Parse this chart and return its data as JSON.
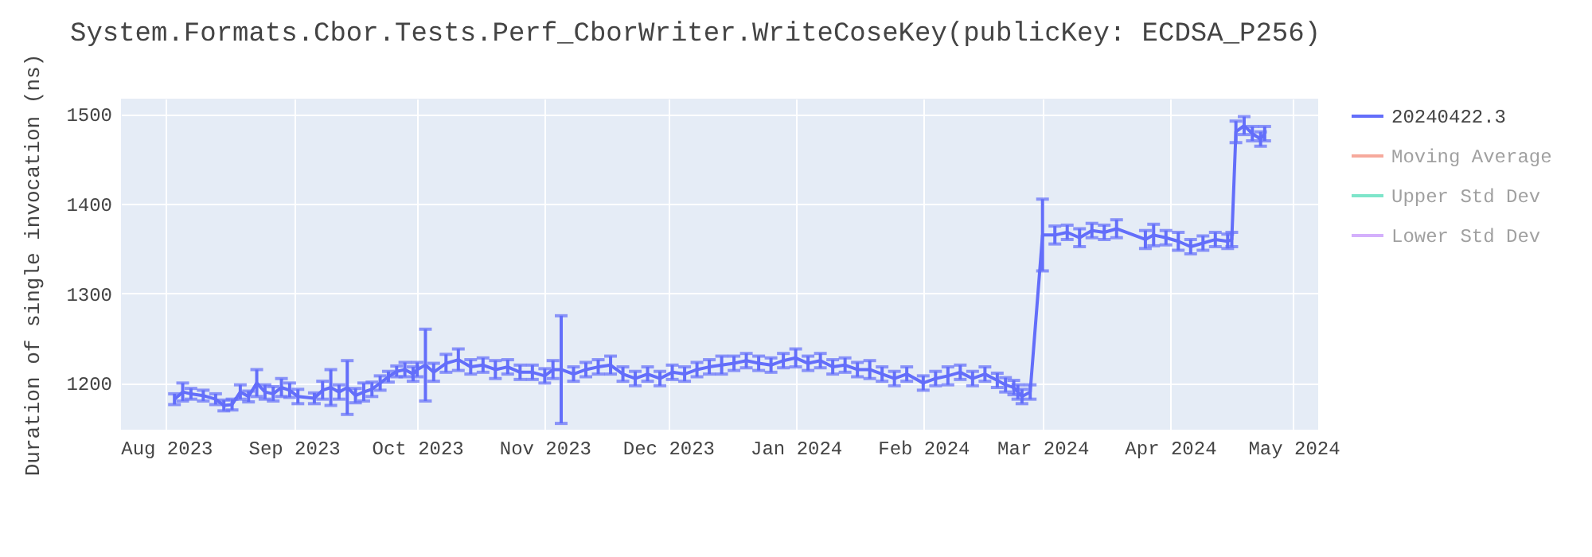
{
  "chart_data": {
    "type": "line",
    "title": "System.Formats.Cbor.Tests.Perf_CborWriter.WriteCoseKey(publicKey: ECDSA_P256)",
    "ylabel": "Duration of single invocation (ns)",
    "xlim": [
      "2023-07-21",
      "2024-05-07"
    ],
    "ylim": [
      1148,
      1517
    ],
    "xticks": [
      {
        "value": "2023-08-01",
        "label": "Aug 2023"
      },
      {
        "value": "2023-09-01",
        "label": "Sep 2023"
      },
      {
        "value": "2023-10-01",
        "label": "Oct 2023"
      },
      {
        "value": "2023-11-01",
        "label": "Nov 2023"
      },
      {
        "value": "2023-12-01",
        "label": "Dec 2023"
      },
      {
        "value": "2024-01-01",
        "label": "Jan 2024"
      },
      {
        "value": "2024-02-01",
        "label": "Feb 2024"
      },
      {
        "value": "2024-03-01",
        "label": "Mar 2024"
      },
      {
        "value": "2024-04-01",
        "label": "Apr 2024"
      },
      {
        "value": "2024-05-01",
        "label": "May 2024"
      }
    ],
    "yticks": [
      1200,
      1300,
      1400,
      1500
    ],
    "grid": true,
    "legend": "right",
    "line_style": "solid",
    "series": [
      {
        "name": "20240422.3",
        "color": "#636efa",
        "x": [
          "2023-08-03",
          "2023-08-05",
          "2023-08-07",
          "2023-08-10",
          "2023-08-13",
          "2023-08-15",
          "2023-08-17",
          "2023-08-19",
          "2023-08-21",
          "2023-08-23",
          "2023-08-25",
          "2023-08-27",
          "2023-08-29",
          "2023-08-31",
          "2023-09-02",
          "2023-09-06",
          "2023-09-08",
          "2023-09-10",
          "2023-09-12",
          "2023-09-14",
          "2023-09-16",
          "2023-09-18",
          "2023-09-20",
          "2023-09-22",
          "2023-09-24",
          "2023-09-26",
          "2023-09-28",
          "2023-09-30",
          "2023-10-01",
          "2023-10-03",
          "2023-10-05",
          "2023-10-08",
          "2023-10-11",
          "2023-10-14",
          "2023-10-17",
          "2023-10-20",
          "2023-10-23",
          "2023-10-26",
          "2023-10-29",
          "2023-11-01",
          "2023-11-03",
          "2023-11-05",
          "2023-11-08",
          "2023-11-11",
          "2023-11-14",
          "2023-11-17",
          "2023-11-20",
          "2023-11-23",
          "2023-11-26",
          "2023-11-29",
          "2023-12-02",
          "2023-12-05",
          "2023-12-08",
          "2023-12-11",
          "2023-12-14",
          "2023-12-17",
          "2023-12-20",
          "2023-12-23",
          "2023-12-26",
          "2023-12-29",
          "2024-01-01",
          "2024-01-04",
          "2024-01-07",
          "2024-01-10",
          "2024-01-13",
          "2024-01-16",
          "2024-01-19",
          "2024-01-22",
          "2024-01-25",
          "2024-01-28",
          "2024-02-01",
          "2024-02-04",
          "2024-02-07",
          "2024-02-10",
          "2024-02-13",
          "2024-02-16",
          "2024-02-19",
          "2024-02-21",
          "2024-02-23",
          "2024-02-24",
          "2024-02-25",
          "2024-02-27",
          "2024-03-01",
          "2024-03-04",
          "2024-03-07",
          "2024-03-10",
          "2024-03-13",
          "2024-03-16",
          "2024-03-19",
          "2024-03-26",
          "2024-03-28",
          "2024-03-31",
          "2024-04-03",
          "2024-04-06",
          "2024-04-09",
          "2024-04-12",
          "2024-04-15",
          "2024-04-16",
          "2024-04-17",
          "2024-04-19",
          "2024-04-21",
          "2024-04-23",
          "2024-04-24"
        ],
        "values": [
          1182,
          1190,
          1188,
          1186,
          1182,
          1175,
          1176,
          1190,
          1185,
          1200,
          1190,
          1188,
          1195,
          1192,
          1185,
          1183,
          1192,
          1195,
          1190,
          1195,
          1186,
          1190,
          1193,
          1200,
          1207,
          1213,
          1215,
          1210,
          1215,
          1220,
          1212,
          1222,
          1226,
          1218,
          1220,
          1215,
          1218,
          1212,
          1212,
          1208,
          1215,
          1215,
          1210,
          1215,
          1218,
          1220,
          1210,
          1205,
          1210,
          1205,
          1212,
          1210,
          1215,
          1218,
          1220,
          1222,
          1225,
          1222,
          1220,
          1225,
          1228,
          1222,
          1225,
          1218,
          1220,
          1215,
          1215,
          1210,
          1205,
          1210,
          1200,
          1205,
          1208,
          1212,
          1205,
          1210,
          1203,
          1198,
          1195,
          1190,
          1185,
          1190,
          1365,
          1365,
          1368,
          1362,
          1370,
          1368,
          1372,
          1360,
          1365,
          1362,
          1358,
          1352,
          1356,
          1360,
          1358,
          1360,
          1480,
          1487,
          1478,
          1472,
          1478
        ],
        "errors": [
          6,
          10,
          6,
          6,
          6,
          6,
          6,
          8,
          6,
          15,
          8,
          8,
          10,
          8,
          8,
          6,
          10,
          20,
          8,
          30,
          8,
          10,
          8,
          8,
          6,
          6,
          8,
          8,
          8,
          40,
          10,
          10,
          12,
          8,
          8,
          10,
          8,
          8,
          8,
          8,
          10,
          60,
          8,
          8,
          8,
          10,
          8,
          8,
          8,
          8,
          8,
          8,
          8,
          8,
          10,
          8,
          8,
          8,
          8,
          8,
          10,
          8,
          8,
          8,
          8,
          8,
          10,
          8,
          8,
          8,
          8,
          8,
          10,
          8,
          8,
          8,
          8,
          8,
          8,
          8,
          8,
          8,
          40,
          10,
          8,
          10,
          8,
          8,
          10,
          10,
          12,
          8,
          10,
          8,
          8,
          8,
          8,
          8,
          12,
          10,
          8,
          8,
          8
        ]
      },
      {
        "name": "Moving Average",
        "color": "#ef553b"
      },
      {
        "name": "Upper Std Dev",
        "color": "#00cc96"
      },
      {
        "name": "Lower Std Dev",
        "color": "#ab63fa"
      }
    ]
  }
}
